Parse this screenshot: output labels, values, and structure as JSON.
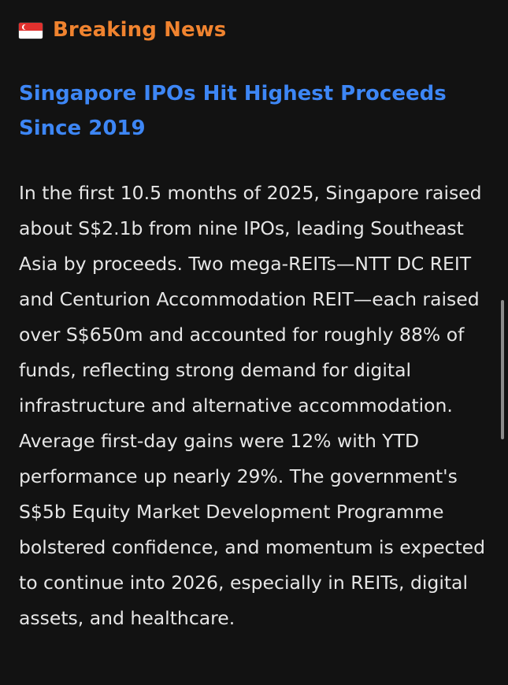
{
  "header": {
    "flag_icon": "singapore-flag-icon",
    "section_label": "Breaking News",
    "accent_color": "#f0832f"
  },
  "article": {
    "headline": "Singapore IPOs Hit Highest Proceeds Since 2019",
    "headline_color": "#3d86f5",
    "body": "In the first 10.5 months of 2025, Singapore raised about S$2.1b from nine IPOs, leading Southeast Asia by proceeds. Two mega-REITs—NTT DC REIT and Centurion Accommodation REIT—each raised over S$650m and accounted for roughly 88% of funds, reflecting strong demand for digital infrastructure and alternative accommodation. Average first-day gains were 12% with YTD performance up nearly 29%. The government's S$5b Equity Market Development Programme bolstered confidence, and momentum is expected to continue into 2026, especially in REITs, digital assets, and healthcare."
  },
  "colors": {
    "background": "#121212",
    "text": "#e6e6e6"
  }
}
